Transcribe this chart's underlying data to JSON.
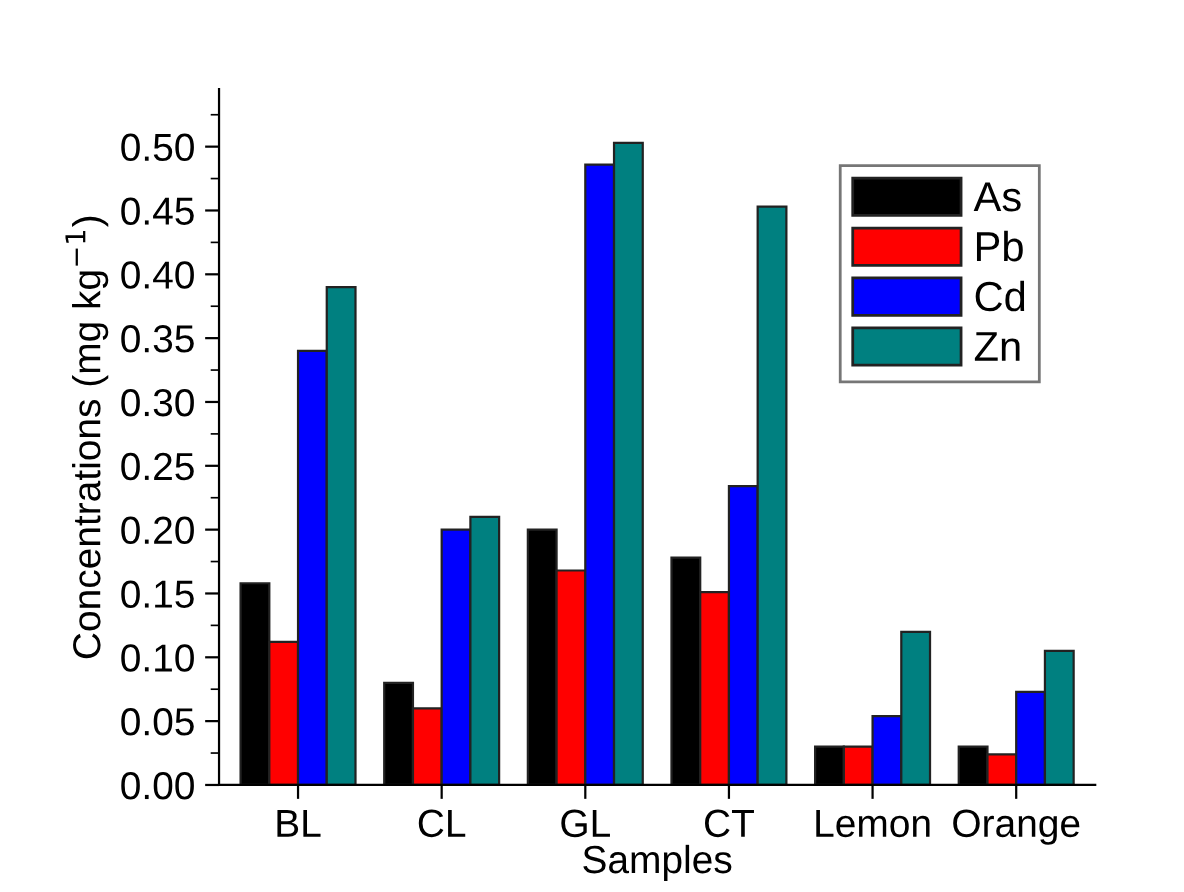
{
  "chart_data": {
    "type": "bar",
    "xlabel": "Samples",
    "ylabel": "Concentrations (mg kg$^{−1}$)",
    "categories": [
      "BL",
      "CL",
      "GL",
      "CT",
      "Lemon",
      "Orange"
    ],
    "series": [
      {
        "name": "As",
        "color": "#000000",
        "values": [
          0.158,
          0.08,
          0.2,
          0.178,
          0.03,
          0.03
        ]
      },
      {
        "name": "Pb",
        "color": "#ff0000",
        "values": [
          0.112,
          0.06,
          0.168,
          0.151,
          0.03,
          0.024
        ]
      },
      {
        "name": "Cd",
        "color": "#0000ff",
        "values": [
          0.34,
          0.2,
          0.486,
          0.234,
          0.054,
          0.073
        ]
      },
      {
        "name": "Zn",
        "color": "#008080",
        "values": [
          0.39,
          0.21,
          0.503,
          0.453,
          0.12,
          0.105
        ]
      }
    ],
    "ylim": [
      0,
      0.545
    ],
    "yticks": [
      {
        "value": 0,
        "label": "0.00"
      },
      0.05,
      {
        "value": 0.1,
        "label": "0.10"
      },
      0.15,
      {
        "value": 0.2,
        "label": "0.20"
      },
      0.25,
      {
        "value": 0.3,
        "label": "0.30"
      },
      0.35,
      {
        "value": 0.4,
        "label": "0.40"
      },
      0.45,
      {
        "value": 0.5,
        "label": "0.50"
      }
    ],
    "legend": "top right",
    "grid": false
  }
}
